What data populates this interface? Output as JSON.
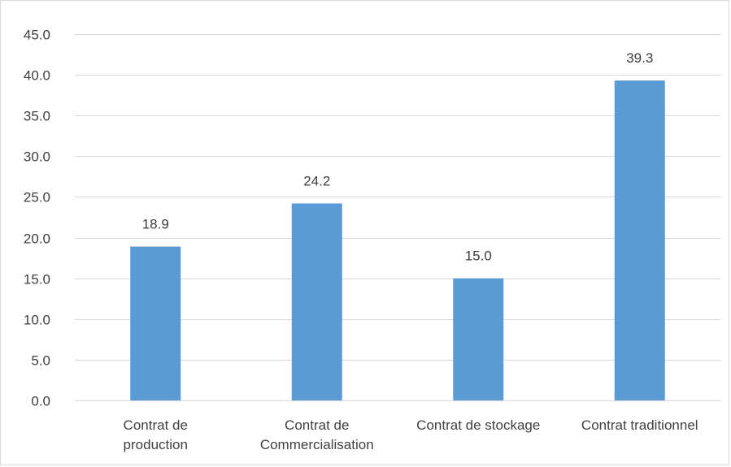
{
  "chart_data": {
    "type": "bar",
    "categories": [
      [
        "Contrat de",
        "production"
      ],
      [
        "Contrat de",
        "Commercialisation"
      ],
      [
        "Contrat de stockage"
      ],
      [
        "Contrat traditionnel"
      ]
    ],
    "values": [
      18.9,
      24.2,
      15.0,
      39.3
    ],
    "data_labels": [
      "18.9",
      "24.2",
      "15.0",
      "39.3"
    ],
    "y_ticks": [
      "0.0",
      "5.0",
      "10.0",
      "15.0",
      "20.0",
      "25.0",
      "30.0",
      "35.0",
      "40.0",
      "45.0"
    ],
    "ylim": [
      0,
      45
    ],
    "y_step": 5,
    "grid": true,
    "legend": "none",
    "title": "",
    "xlabel": "",
    "ylabel": "",
    "colors": {
      "bar": "#5b9bd5",
      "grid": "#d9d9d9",
      "text": "#404040"
    }
  }
}
